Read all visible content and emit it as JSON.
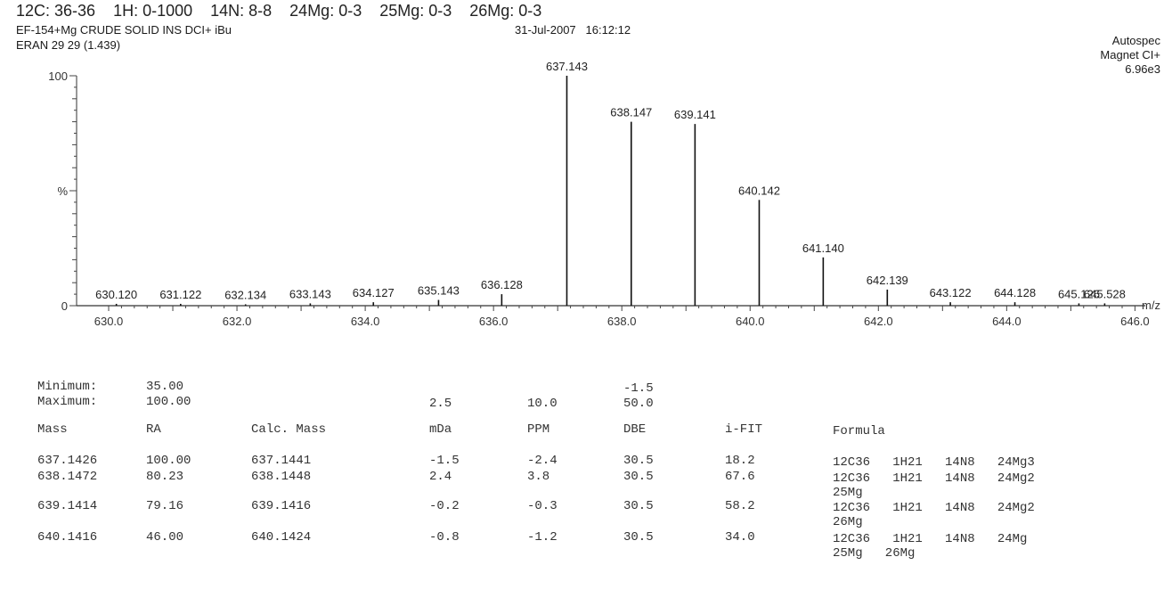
{
  "header": {
    "elements": "12C: 36-36    1H: 0-1000    14N: 8-8    24Mg: 0-3    25Mg: 0-3    26Mg: 0-3",
    "sample": "EF-154+Mg CRUDE SOLID INS DCI+ iBu",
    "date": "31-Jul-2007",
    "time": "16:12:12",
    "scan": "ERAN 29 29 (1.439)",
    "instrument": "Autospec",
    "mode": "Magnet CI+",
    "intensity": "6.96e3"
  },
  "chart_data": {
    "type": "bar",
    "xlim": [
      629.5,
      646.3
    ],
    "ylim": [
      0,
      100
    ],
    "xlabel": "m/z",
    "ylabel": "%",
    "y_tick_labels": [
      "0",
      "%",
      "100"
    ],
    "x_tick_labels": [
      "630.0",
      "632.0",
      "634.0",
      "636.0",
      "638.0",
      "640.0",
      "642.0",
      "644.0",
      "646.0"
    ],
    "x_ticks": [
      630,
      632,
      634,
      636,
      638,
      640,
      642,
      644,
      646
    ],
    "peaks": [
      {
        "mz": 630.12,
        "label": "630.120",
        "value": 0.8
      },
      {
        "mz": 631.122,
        "label": "631.122",
        "value": 0.8
      },
      {
        "mz": 632.134,
        "label": "632.134",
        "value": 0.6
      },
      {
        "mz": 633.143,
        "label": "633.143",
        "value": 1
      },
      {
        "mz": 634.127,
        "label": "634.127",
        "value": 1.5
      },
      {
        "mz": 635.143,
        "label": "635.143",
        "value": 2.5
      },
      {
        "mz": 636.128,
        "label": "636.128",
        "value": 5
      },
      {
        "mz": 637.143,
        "label": "637.143",
        "value": 100
      },
      {
        "mz": 638.147,
        "label": "638.147",
        "value": 80
      },
      {
        "mz": 639.141,
        "label": "639.141",
        "value": 79
      },
      {
        "mz": 640.142,
        "label": "640.142",
        "value": 46
      },
      {
        "mz": 641.14,
        "label": "641.140",
        "value": 21
      },
      {
        "mz": 642.139,
        "label": "642.139",
        "value": 7
      },
      {
        "mz": 643.122,
        "label": "643.122",
        "value": 1.5
      },
      {
        "mz": 644.128,
        "label": "644.128",
        "value": 1.5
      },
      {
        "mz": 645.126,
        "label": "645.126",
        "value": 1
      },
      {
        "mz": 645.528,
        "label": "645.528",
        "value": 1
      }
    ]
  },
  "limits": {
    "min_label": "Minimum:",
    "max_label": "Maximum:",
    "min_ra": "35.00",
    "max_ra": "100.00",
    "max_mda": "2.5",
    "max_ppm": "10.0",
    "min_dbe": "-1.5",
    "max_dbe": "50.0"
  },
  "table": {
    "columns": [
      "Mass",
      "RA",
      "Calc. Mass",
      "mDa",
      "PPM",
      "DBE",
      "i-FIT",
      "Formula"
    ],
    "rows": [
      {
        "mass": "637.1426",
        "ra": "100.00",
        "calc": "637.1441",
        "mda": "-1.5",
        "ppm": "-2.4",
        "dbe": "30.5",
        "ifit": "18.2",
        "formula": [
          "12C36   1H21   14N8   24Mg3"
        ]
      },
      {
        "mass": "638.1472",
        "ra": "80.23",
        "calc": "638.1448",
        "mda": "2.4",
        "ppm": "3.8",
        "dbe": "30.5",
        "ifit": "67.6",
        "formula": [
          "12C36   1H21   14N8   24Mg2",
          "25Mg"
        ]
      },
      {
        "mass": "639.1414",
        "ra": "79.16",
        "calc": "639.1416",
        "mda": "-0.2",
        "ppm": "-0.3",
        "dbe": "30.5",
        "ifit": "58.2",
        "formula": [
          "12C36   1H21   14N8   24Mg2",
          "26Mg"
        ]
      },
      {
        "mass": "640.1416",
        "ra": "46.00",
        "calc": "640.1424",
        "mda": "-0.8",
        "ppm": "-1.2",
        "dbe": "30.5",
        "ifit": "34.0",
        "formula": [
          "12C36   1H21   14N8   24Mg",
          "25Mg   26Mg"
        ]
      }
    ]
  }
}
